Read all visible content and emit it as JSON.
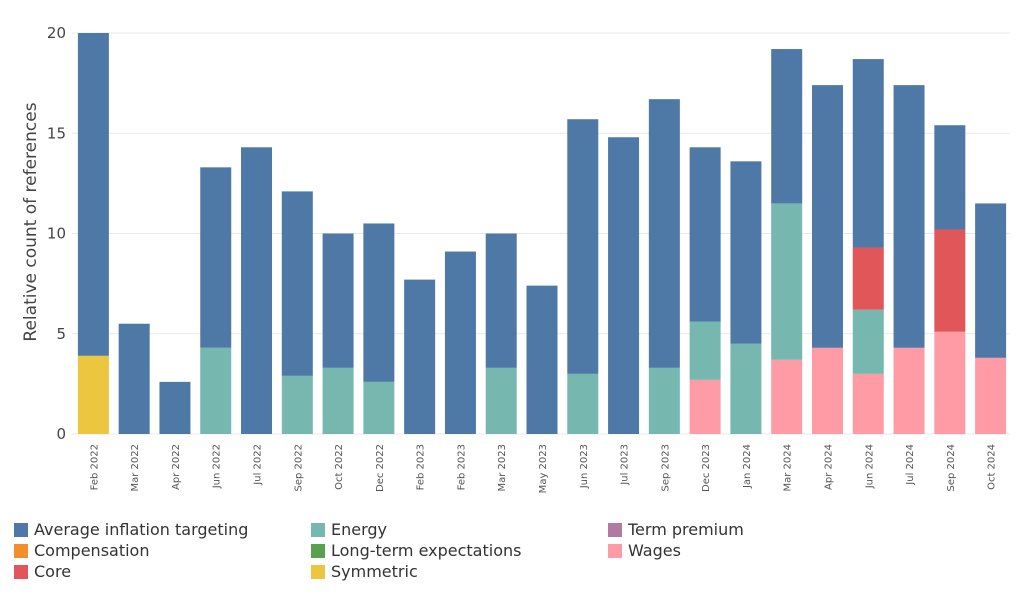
{
  "chart_data": {
    "type": "bar",
    "stacked": true,
    "title": "",
    "xlabel": "",
    "ylabel": "Relative count of references",
    "ylim": [
      0,
      20
    ],
    "yticks": [
      0,
      5,
      10,
      15,
      20
    ],
    "grid": true,
    "legend_placement": "bottom",
    "categories": [
      "Feb 2022",
      "Mar 2022",
      "Apr 2022",
      "Jun 2022",
      "Jul 2022",
      "Sep 2022",
      "Oct 2022",
      "Dec 2022",
      "Feb 2023",
      "Feb 2023",
      "Mar 2023",
      "May 2023",
      "Jun 2023",
      "Jul 2023",
      "Sep 2023",
      "Dec 2023",
      "Jan 2024",
      "Mar 2024",
      "Apr 2024",
      "Jun 2024",
      "Jul 2024",
      "Sep 2024",
      "Oct 2024"
    ],
    "series": [
      {
        "name": "Symmetric",
        "color": "#ecc63f",
        "values": [
          3.9,
          0,
          0,
          0,
          0,
          0,
          0,
          0,
          0,
          0,
          0,
          0,
          0,
          0,
          0,
          0,
          0,
          0,
          0,
          0,
          0,
          0,
          0
        ]
      },
      {
        "name": "Wages",
        "color": "#ff9ba5",
        "values": [
          0,
          0,
          0,
          0,
          0,
          0,
          0,
          0,
          0,
          0,
          0,
          0,
          0,
          0,
          0,
          2.7,
          0,
          3.7,
          4.3,
          3.0,
          4.3,
          5.1,
          3.8
        ]
      },
      {
        "name": "Energy",
        "color": "#76b7b0",
        "values": [
          0,
          0,
          0,
          4.3,
          0,
          2.9,
          3.3,
          2.6,
          0,
          0,
          3.3,
          0,
          3.0,
          0,
          3.3,
          2.9,
          4.5,
          7.8,
          0,
          3.2,
          0,
          0,
          0
        ]
      },
      {
        "name": "Core",
        "color": "#e15759",
        "values": [
          0,
          0,
          0,
          0,
          0,
          0,
          0,
          0,
          0,
          0,
          0,
          0,
          0,
          0,
          0,
          0,
          0,
          0,
          0,
          3.1,
          0,
          5.1,
          0
        ]
      },
      {
        "name": "Average inflation targeting",
        "color": "#4e79a7",
        "values": [
          16.1,
          5.5,
          2.6,
          9.0,
          14.3,
          9.2,
          6.7,
          7.9,
          7.7,
          9.1,
          6.7,
          7.4,
          12.7,
          14.8,
          13.4,
          8.7,
          9.1,
          7.7,
          13.1,
          9.4,
          13.1,
          5.2,
          7.7
        ]
      }
    ],
    "legend": [
      {
        "name": "Average inflation targeting",
        "color": "#4e79a7"
      },
      {
        "name": "Compensation",
        "color": "#f28e2b"
      },
      {
        "name": "Core",
        "color": "#e15759"
      },
      {
        "name": "Energy",
        "color": "#76b7b0"
      },
      {
        "name": "Long-term expectations",
        "color": "#59a14f"
      },
      {
        "name": "Symmetric",
        "color": "#ecc63f"
      },
      {
        "name": "Term premium",
        "color": "#b07aa1"
      },
      {
        "name": "Wages",
        "color": "#ff9ba5"
      }
    ]
  }
}
